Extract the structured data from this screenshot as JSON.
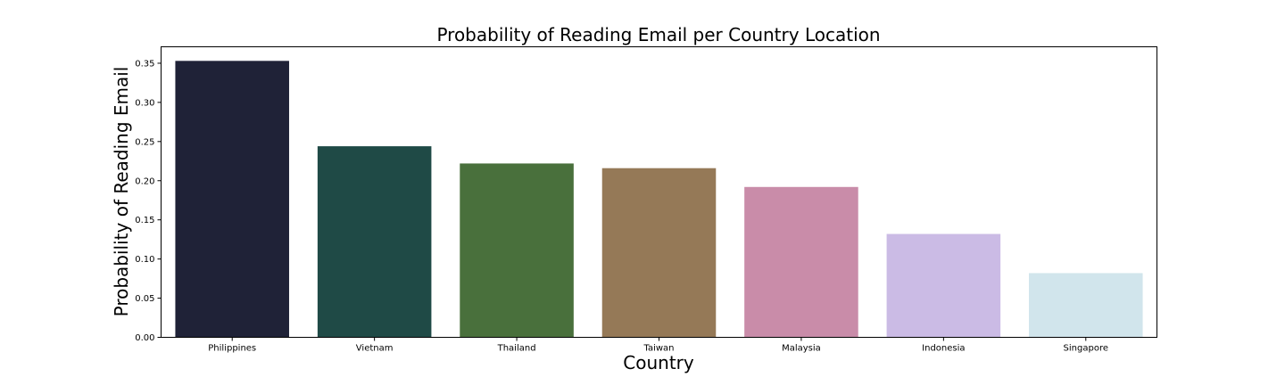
{
  "chart_data": {
    "type": "bar",
    "title": "Probability of Reading Email per Country Location",
    "xlabel": "Country",
    "ylabel": "Probability of Reading Email",
    "categories": [
      "Philippines",
      "Vietnam",
      "Thailand",
      "Taiwan",
      "Malaysia",
      "Indonesia",
      "Singapore"
    ],
    "values": [
      0.353,
      0.244,
      0.222,
      0.216,
      0.192,
      0.132,
      0.082
    ],
    "colors": [
      "#1f2237",
      "#1f4a46",
      "#49703c",
      "#957957",
      "#c98ca9",
      "#cbbbe5",
      "#d1e5ec"
    ],
    "ylim": [
      0,
      0.371
    ],
    "yticks": [
      "0.00",
      "0.05",
      "0.10",
      "0.15",
      "0.20",
      "0.25",
      "0.30",
      "0.35"
    ],
    "grid": false,
    "legend": "none"
  }
}
